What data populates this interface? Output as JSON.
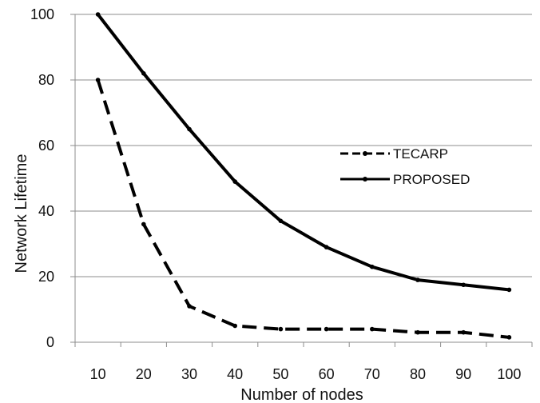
{
  "chart_data": {
    "type": "line",
    "title": "",
    "xlabel": "Number of nodes",
    "ylabel": "Network Lifetime",
    "x": [
      10,
      20,
      30,
      40,
      50,
      60,
      70,
      80,
      90,
      100
    ],
    "x_tick_labels": [
      "10",
      "20",
      "30",
      "40",
      "50",
      "60",
      "70",
      "80",
      "90",
      "100"
    ],
    "y_ticks": [
      0,
      20,
      40,
      60,
      80,
      100
    ],
    "y_tick_labels": [
      "0",
      "20",
      "40",
      "60",
      "80",
      "100"
    ],
    "ylim": [
      0,
      100
    ],
    "grid": "horizontal",
    "legend_position": "right",
    "series": [
      {
        "name": "TECARP",
        "style": "dashed",
        "color": "#000000",
        "values": [
          80,
          36,
          11,
          5,
          4,
          4,
          4,
          3,
          3,
          1.5
        ]
      },
      {
        "name": "PROPOSED",
        "style": "solid",
        "color": "#000000",
        "values": [
          100,
          82,
          65,
          49,
          37,
          29,
          23,
          19,
          17.5,
          16
        ]
      }
    ]
  }
}
